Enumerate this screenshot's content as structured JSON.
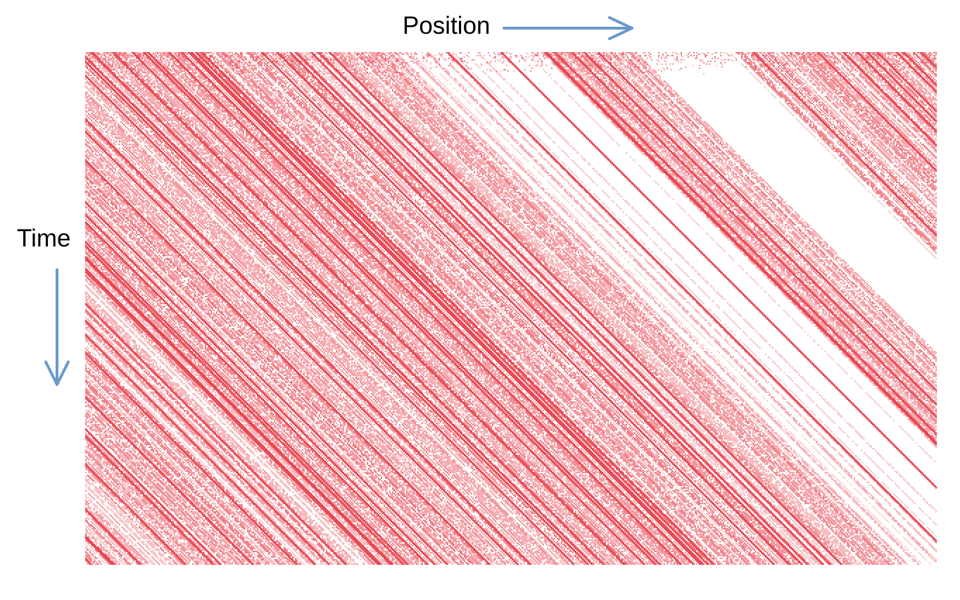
{
  "labels": {
    "position": "Position",
    "time": "Time"
  },
  "colors": {
    "arrow": "#6a99cc",
    "trace": "#e8424d",
    "background": "#ffffff"
  },
  "icons": {
    "position_arrow": "right-arrow-icon",
    "time_arrow": "down-arrow-icon"
  }
}
